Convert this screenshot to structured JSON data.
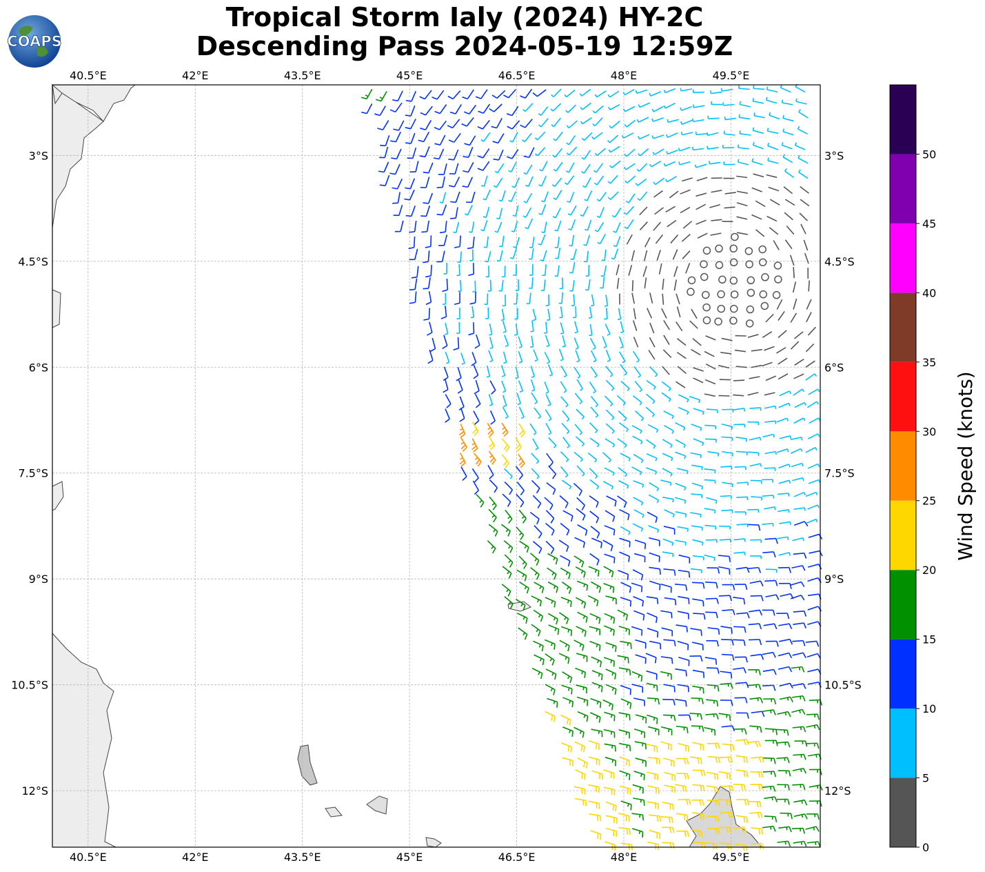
{
  "title": {
    "line1": "Tropical Storm Ialy (2024) HY-2C",
    "line2": "Descending Pass 2024-05-19 12:59Z"
  },
  "logo": {
    "text": "COAPS",
    "icon": "globe-logo-icon"
  },
  "map": {
    "lon_range": [
      40,
      50.75
    ],
    "lat_range": [
      -12.8,
      -2
    ],
    "lon_ticks": [
      "40.5°E",
      "42°E",
      "43.5°E",
      "45°E",
      "46.5°E",
      "48°E",
      "49.5°E"
    ],
    "lat_ticks": [
      "3°S",
      "4.5°S",
      "6°S",
      "7.5°S",
      "9°S",
      "10.5°S",
      "12°S"
    ],
    "gridlines": true,
    "storm_center": {
      "lon": 49.55,
      "lat": -4.8
    }
  },
  "colorbar": {
    "label": "Wind Speed (knots)",
    "ticks": [
      "0",
      "5",
      "10",
      "15",
      "20",
      "25",
      "30",
      "35",
      "40",
      "45",
      "50"
    ],
    "bins": [
      {
        "min": 0,
        "max": 5,
        "color": "#555555"
      },
      {
        "min": 5,
        "max": 10,
        "color": "#00bfff"
      },
      {
        "min": 10,
        "max": 15,
        "color": "#0030ff"
      },
      {
        "min": 15,
        "max": 20,
        "color": "#009000"
      },
      {
        "min": 20,
        "max": 25,
        "color": "#ffd700"
      },
      {
        "min": 25,
        "max": 30,
        "color": "#ff8c00"
      },
      {
        "min": 30,
        "max": 35,
        "color": "#ff1010"
      },
      {
        "min": 35,
        "max": 40,
        "color": "#803a28"
      },
      {
        "min": 40,
        "max": 45,
        "color": "#ff00ff"
      },
      {
        "min": 45,
        "max": 50,
        "color": "#8000b0"
      },
      {
        "min": 50,
        "max": 55,
        "color": "#2a0055"
      }
    ]
  }
}
